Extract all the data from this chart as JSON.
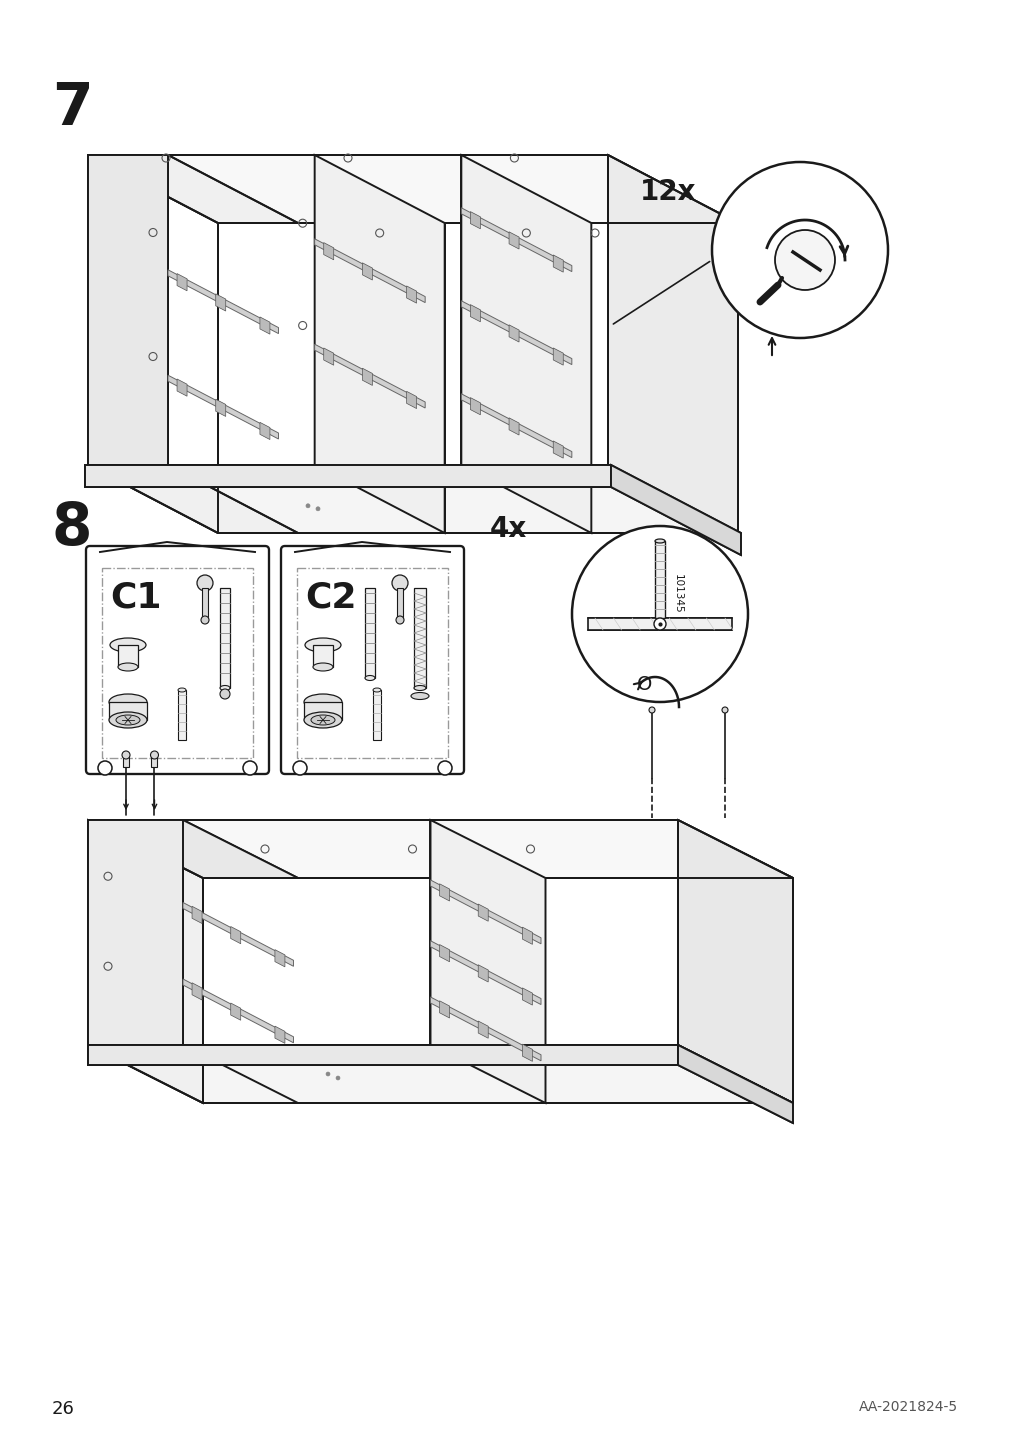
{
  "page_number": "26",
  "doc_id": "AA-2021824-5",
  "step7_number": "7",
  "step8_number": "8",
  "step7_qty": "12x",
  "step8_qty": "4x",
  "step8_part_num": "101345",
  "c1_label": "C1",
  "c2_label": "C2",
  "bg_color": "#ffffff",
  "lc": "#1a1a1a",
  "lw": 1.4,
  "face_white": "#ffffff",
  "face_light": "#f0f0f0",
  "face_mid": "#e0e0e0"
}
